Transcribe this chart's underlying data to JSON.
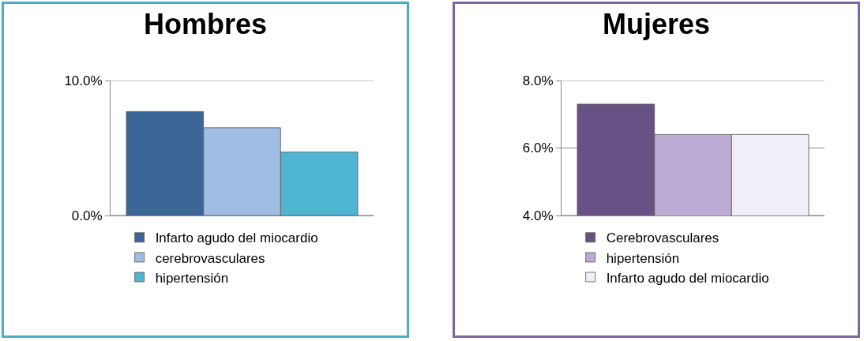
{
  "chart_data": [
    {
      "type": "bar",
      "title": "Hombres",
      "categories": [
        null
      ],
      "series": [
        {
          "name": "Infarto agudo del miocardio",
          "color": "#3c6698",
          "values": [
            7.7
          ]
        },
        {
          "name": "cerebrovasculares",
          "color": "#a0bde3",
          "values": [
            6.5
          ]
        },
        {
          "name": "hipertensión",
          "color": "#4fb5d2",
          "values": [
            4.7
          ]
        }
      ],
      "ylim": [
        0,
        10
      ],
      "yticks": [
        {
          "value": 0,
          "label": "0.0%"
        },
        {
          "value": 10,
          "label": "10.0%"
        }
      ],
      "grid": "y",
      "legend": "bottom"
    },
    {
      "type": "bar",
      "title": "Mujeres",
      "categories": [
        null
      ],
      "series": [
        {
          "name": "Cerebrovasculares",
          "color": "#685285",
          "values": [
            7.3
          ]
        },
        {
          "name": "hipertensión",
          "color": "#bcabd2",
          "values": [
            6.4
          ]
        },
        {
          "name": "Infarto agudo del miocardio",
          "color": "#f2eef8",
          "values": [
            6.4
          ]
        }
      ],
      "ylim": [
        4,
        8
      ],
      "yticks": [
        {
          "value": 4,
          "label": "4.0%"
        },
        {
          "value": 6,
          "label": "6.0%"
        },
        {
          "value": 8,
          "label": "8.0%"
        }
      ],
      "grid": "y",
      "legend": "bottom"
    }
  ]
}
